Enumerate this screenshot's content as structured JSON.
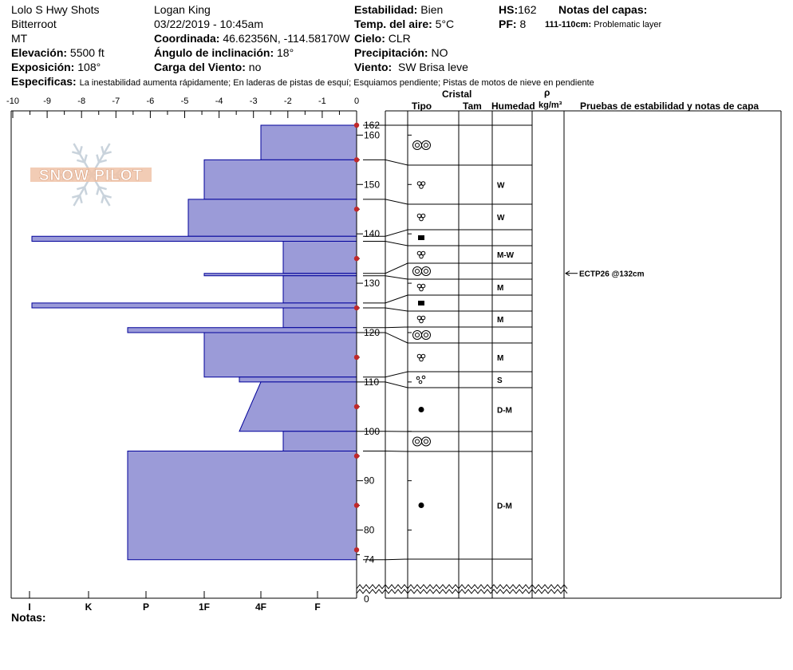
{
  "header": {
    "location": "Lolo S Hwy Shots",
    "range": "Bitterroot",
    "state": "MT",
    "elevation_label": "Elevación:",
    "elevation_value": "5500 ft",
    "exposure_label": "Exposición:",
    "exposure_value": "108°",
    "observer": "Logan King",
    "datetime": "03/22/2019 - 10:45am",
    "coord_label": "Coordinada:",
    "coord_value": "46.62356N, -114.58170W",
    "slope_label": "Ángulo de inclinación:",
    "slope_value": "18°",
    "wind_load_label": "Carga del Viento:",
    "wind_load_value": "no",
    "stability_label": "Estabilidad:",
    "stability_value": "Bien",
    "air_temp_label": "Temp. del aire:",
    "air_temp_value": "5°C",
    "sky_label": "Cielo:",
    "sky_value": "CLR",
    "precip_label": "Precipitación:",
    "precip_value": "NO",
    "wind_label": "Viento:",
    "wind_value": "SW Brisa leve",
    "hs_label": "HS:",
    "hs_value": "162",
    "pf_label": "PF:",
    "pf_value": "8",
    "layer_notes_label": "Notas del capas:",
    "layer_note_range": "111-110cm:",
    "layer_note_text": "Problematic layer",
    "specifics_label": "Especificas:",
    "specifics_text": "La inestabilidad aumenta rápidamente;  En laderas de pistas de esquí;  Esquiamos pendiente;  Pistas de motos de nieve en pendiente"
  },
  "columns": {
    "cristal": "Cristal",
    "tipo": "Tipo",
    "tam": "Tam",
    "humedad": "Humedad",
    "rho": "ρ",
    "density_unit": "kg/m³",
    "tests": "Pruebas de estabilidad y notas de capa"
  },
  "notes_label": "Notas:",
  "watermark": "SNOW PILOT",
  "colors": {
    "hardness_fill": "#9b9bd8",
    "hardness_stroke": "#00009a",
    "temp_marker": "#c0282a"
  },
  "chart_data": {
    "type": "area",
    "title": "",
    "top_axis": {
      "ticks": [
        -10,
        -9,
        -8,
        -7,
        -6,
        -5,
        -4,
        -3,
        -2,
        -1,
        0
      ],
      "labels": [
        "-10",
        "-9",
        "-8",
        "-7",
        "-6",
        "-5",
        "-4",
        "-3",
        "-2",
        "-1",
        "0"
      ]
    },
    "hardness_axis": {
      "labels": [
        "I",
        "K",
        "P",
        "1F",
        "4F",
        "F"
      ]
    },
    "height_axis": {
      "ticks": [
        160,
        150,
        140,
        130,
        120,
        110,
        100,
        90,
        80
      ],
      "labels": [
        "160",
        "150",
        "140",
        "130",
        "120",
        "110",
        "100",
        "90",
        "80"
      ],
      "extra_labels": [
        "162",
        "74",
        "0"
      ],
      "range": [
        74,
        162
      ]
    },
    "hardness_profile": [
      {
        "top": 162,
        "bottom": 155,
        "hardness": "4F"
      },
      {
        "top": 155,
        "bottom": 147,
        "hardness": "1F"
      },
      {
        "top": 147,
        "bottom": 139.5,
        "hardness": "1F+"
      },
      {
        "top": 139.5,
        "bottom": 138.5,
        "hardness": "I-"
      },
      {
        "top": 138.5,
        "bottom": 132,
        "hardness": "4F-"
      },
      {
        "top": 132,
        "bottom": 131.5,
        "hardness": "1F"
      },
      {
        "top": 131.5,
        "bottom": 126,
        "hardness": "4F-"
      },
      {
        "top": 126,
        "bottom": 125,
        "hardness": "I-"
      },
      {
        "top": 125,
        "bottom": 121,
        "hardness": "4F-"
      },
      {
        "top": 121,
        "bottom": 120,
        "hardness": "K-"
      },
      {
        "top": 120,
        "bottom": 111,
        "hardness": "1F"
      },
      {
        "top": 111,
        "bottom": 110,
        "hardness": "1F-"
      },
      {
        "top": 110,
        "bottom": 100,
        "hardness": "4F to 1F-"
      },
      {
        "top": 100,
        "bottom": 96,
        "hardness": "4F-"
      },
      {
        "top": 96,
        "bottom": 74,
        "hardness": "K-"
      }
    ],
    "temperature_points": [
      {
        "height": 162,
        "temp": 0
      },
      {
        "height": 155,
        "temp": 0
      },
      {
        "height": 145,
        "temp": 0
      },
      {
        "height": 135,
        "temp": 0
      },
      {
        "height": 125,
        "temp": 0
      },
      {
        "height": 115,
        "temp": 0
      },
      {
        "height": 105,
        "temp": 0
      },
      {
        "height": 95,
        "temp": 0
      },
      {
        "height": 85,
        "temp": 0
      },
      {
        "height": 76,
        "temp": 0
      }
    ],
    "layers": [
      {
        "top": 162,
        "bottom": 155,
        "grain": "round",
        "moisture": ""
      },
      {
        "top": 155,
        "bottom": 147,
        "grain": "mixed",
        "moisture": "W"
      },
      {
        "top": 147,
        "bottom": 139.5,
        "grain": "mixed",
        "moisture": "W"
      },
      {
        "top": 139.5,
        "bottom": 138.5,
        "grain": "crust",
        "moisture": ""
      },
      {
        "top": 138.5,
        "bottom": 132,
        "grain": "mixed",
        "moisture": "M-W"
      },
      {
        "top": 132,
        "bottom": 131.5,
        "grain": "round",
        "moisture": ""
      },
      {
        "top": 131.5,
        "bottom": 126,
        "grain": "mixed",
        "moisture": "M"
      },
      {
        "top": 126,
        "bottom": 125,
        "grain": "crust",
        "moisture": ""
      },
      {
        "top": 125,
        "bottom": 121,
        "grain": "mixed",
        "moisture": "M"
      },
      {
        "top": 121,
        "bottom": 120,
        "grain": "round",
        "moisture": ""
      },
      {
        "top": 120,
        "bottom": 111,
        "grain": "mixed",
        "moisture": "M"
      },
      {
        "top": 111,
        "bottom": 110,
        "grain": "clusters",
        "moisture": "S"
      },
      {
        "top": 110,
        "bottom": 100,
        "grain": "melt",
        "moisture": "D-M"
      },
      {
        "top": 100,
        "bottom": 96,
        "grain": "round",
        "moisture": ""
      },
      {
        "top": 96,
        "bottom": 74,
        "grain": "melt",
        "moisture": "D-M"
      }
    ],
    "test_result": {
      "label": "ECTP26 @132cm",
      "height": 132
    }
  }
}
